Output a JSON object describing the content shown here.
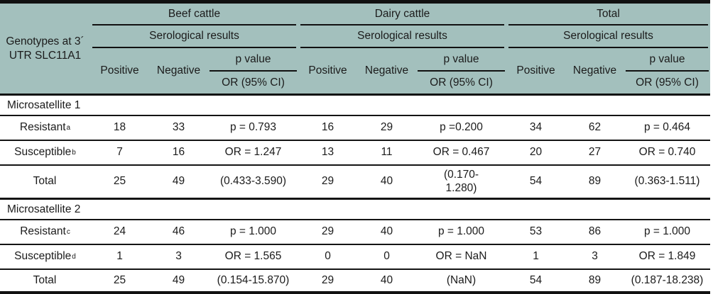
{
  "table": {
    "stub": {
      "line1": "Genotypes at 3´",
      "line2": "UTR SLC11A1"
    },
    "groups": [
      {
        "label": "Beef cattle",
        "sub": "Serological results",
        "col_positive": "Positive",
        "col_negative": "Negative",
        "p_label": "p value",
        "or_label": "OR (95% CI)"
      },
      {
        "label": "Dairy cattle",
        "sub": "Serological results",
        "col_positive": "Positive",
        "col_negative": "Negative",
        "p_label": "p value",
        "or_label": "OR (95% CI)"
      },
      {
        "label": "Total",
        "sub": "Serological results",
        "col_positive": "Positive",
        "col_negative": "Negative",
        "p_label": "p value",
        "or_label": "OR (95% CI)"
      }
    ],
    "sections": [
      {
        "title": "Microsatellite 1",
        "rows": [
          {
            "label": "Resistant",
            "sup": "a",
            "cells": [
              "18",
              "33",
              "p = 0.793",
              "16",
              "29",
              "p =0.200",
              "34",
              "62",
              "p = 0.464"
            ]
          },
          {
            "label": "Susceptible",
            "sup": "b",
            "cells": [
              "7",
              "16",
              "OR = 1.247",
              "13",
              "11",
              "OR = 0.467",
              "20",
              "27",
              "OR = 0.740"
            ]
          },
          {
            "label": "Total",
            "sup": "",
            "cells": [
              "25",
              "49",
              "(0.433-3.590)",
              "29",
              "40",
              "(0.170-\n1.280)",
              "54",
              "89",
              "(0.363-1.511)"
            ]
          }
        ]
      },
      {
        "title": "Microsatellite 2",
        "rows": [
          {
            "label": "Resistant",
            "sup": "c",
            "cells": [
              "24",
              "46",
              "p = 1.000",
              "29",
              "40",
              "p = 1.000",
              "53",
              "86",
              "p = 1.000"
            ]
          },
          {
            "label": "Susceptible",
            "sup": "d",
            "cells": [
              "1",
              "3",
              "OR = 1.565",
              "0",
              "0",
              "OR = NaN",
              "1",
              "3",
              "OR = 1.849"
            ]
          },
          {
            "label": "Total",
            "sup": "",
            "cells": [
              "25",
              "49",
              "(0.154-15.870)",
              "29",
              "40",
              "(NaN)",
              "54",
              "89",
              "(0.187-18.238)"
            ]
          }
        ]
      }
    ],
    "colors": {
      "header_bg": "#a3c0bd",
      "rule": "#141414",
      "text": "#1b1b1b"
    }
  }
}
